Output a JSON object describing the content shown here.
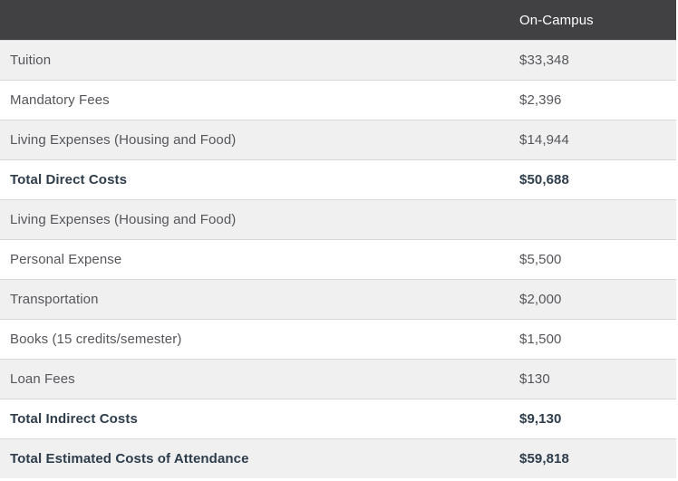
{
  "table": {
    "header": {
      "item_label": "",
      "on_campus_label": "On-Campus"
    },
    "rows": [
      {
        "label": "Tuition",
        "value": "$33,348",
        "total": false
      },
      {
        "label": "Mandatory Fees",
        "value": "$2,396",
        "total": false
      },
      {
        "label": "Living Expenses (Housing and Food)",
        "value": "$14,944",
        "total": false
      },
      {
        "label": "Total Direct Costs",
        "value": "$50,688",
        "total": true
      },
      {
        "label": "Living Expenses (Housing and Food)",
        "value": "",
        "total": false
      },
      {
        "label": "Personal Expense",
        "value": "$5,500",
        "total": false
      },
      {
        "label": "Transportation",
        "value": "$2,000",
        "total": false
      },
      {
        "label": "Books (15 credits/semester)",
        "value": "$1,500",
        "total": false
      },
      {
        "label": "Loan Fees",
        "value": "$130",
        "total": false
      },
      {
        "label": "Total Indirect Costs",
        "value": "$9,130",
        "total": true
      },
      {
        "label": "Total Estimated Costs of Attendance",
        "value": "$59,818",
        "total": true
      }
    ],
    "colors": {
      "header_bg": "#414042",
      "header_text": "#ffffff",
      "row_alt_bg": "#f0f0f0",
      "row_bg": "#ffffff",
      "row_border": "#d8d8d8",
      "body_text": "#55565a",
      "total_text": "#2e3d4c"
    }
  }
}
